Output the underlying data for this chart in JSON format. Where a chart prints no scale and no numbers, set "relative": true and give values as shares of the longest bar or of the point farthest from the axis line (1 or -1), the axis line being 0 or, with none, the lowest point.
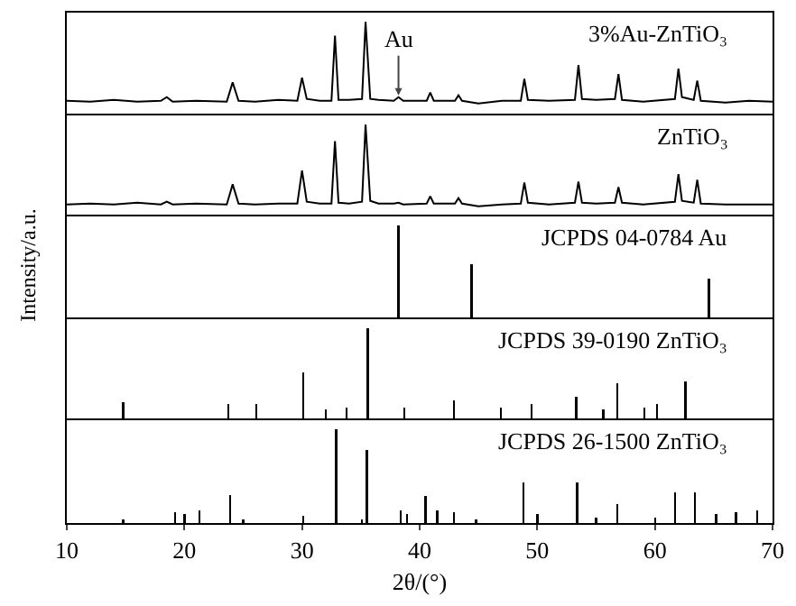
{
  "chart_data": [
    {
      "type": "line",
      "relative": true,
      "color": "#000000",
      "xlim": [
        10,
        70
      ],
      "xticks": [
        10,
        20,
        30,
        40,
        50,
        60,
        70
      ],
      "tick_labels": false,
      "annotations": [
        "3%Au-ZnTiO₃",
        {
          "text": "Au",
          "x": 38.2,
          "y": 0.2
        }
      ],
      "x": [
        10,
        12,
        14,
        16,
        18,
        18.5,
        19,
        21,
        23.6,
        24.1,
        24.6,
        26,
        28,
        29.6,
        30.0,
        30.4,
        31.5,
        32.5,
        32.8,
        33.1,
        34,
        35.1,
        35.4,
        35.8,
        36.5,
        37.8,
        38.2,
        38.6,
        40.6,
        40.9,
        41.2,
        43.0,
        43.3,
        43.6,
        45,
        47,
        48.6,
        48.9,
        49.2,
        51,
        53.2,
        53.5,
        53.8,
        55,
        56.6,
        56.9,
        57.2,
        59,
        61.7,
        62.0,
        62.3,
        63.3,
        63.6,
        63.9,
        66,
        68,
        70
      ],
      "values": [
        0.14,
        0.13,
        0.15,
        0.13,
        0.14,
        0.18,
        0.13,
        0.14,
        0.13,
        0.34,
        0.14,
        0.13,
        0.15,
        0.14,
        0.39,
        0.16,
        0.14,
        0.14,
        0.85,
        0.15,
        0.15,
        0.16,
        1,
        0.16,
        0.15,
        0.14,
        0.18,
        0.14,
        0.14,
        0.23,
        0.14,
        0.14,
        0.2,
        0.14,
        0.11,
        0.14,
        0.14,
        0.38,
        0.15,
        0.14,
        0.15,
        0.53,
        0.16,
        0.15,
        0.16,
        0.43,
        0.15,
        0.13,
        0.16,
        0.49,
        0.18,
        0.15,
        0.36,
        0.14,
        0.12,
        0.14,
        0.13
      ]
    },
    {
      "type": "line",
      "relative": true,
      "color": "#000000",
      "xlim": [
        10,
        70
      ],
      "xticks": [
        10,
        20,
        30,
        40,
        50,
        60,
        70
      ],
      "tick_labels": false,
      "annotations": [
        "ZnTiO₃"
      ],
      "x": [
        10,
        12,
        14,
        16,
        18,
        18.5,
        19,
        21,
        23.6,
        24.1,
        24.6,
        26,
        28,
        29.6,
        30.0,
        30.4,
        31.5,
        32.5,
        32.8,
        33.1,
        34,
        35.1,
        35.4,
        35.8,
        36.5,
        37.8,
        38.2,
        38.6,
        40.6,
        40.9,
        41.2,
        43.0,
        43.3,
        43.6,
        45,
        47,
        48.6,
        48.9,
        49.2,
        51,
        53.2,
        53.5,
        53.8,
        55,
        56.6,
        56.9,
        57.2,
        59,
        61.7,
        62.0,
        62.3,
        63.3,
        63.6,
        63.9,
        66,
        68,
        70
      ],
      "values": [
        0.13,
        0.14,
        0.13,
        0.15,
        0.13,
        0.16,
        0.13,
        0.14,
        0.13,
        0.35,
        0.14,
        0.13,
        0.14,
        0.14,
        0.5,
        0.16,
        0.14,
        0.14,
        0.82,
        0.15,
        0.14,
        0.16,
        1,
        0.17,
        0.14,
        0.14,
        0.15,
        0.13,
        0.14,
        0.22,
        0.14,
        0.14,
        0.2,
        0.14,
        0.11,
        0.13,
        0.14,
        0.37,
        0.15,
        0.13,
        0.15,
        0.38,
        0.15,
        0.14,
        0.15,
        0.32,
        0.15,
        0.13,
        0.16,
        0.46,
        0.17,
        0.15,
        0.4,
        0.14,
        0.13,
        0.13,
        0.13
      ]
    },
    {
      "type": "bar",
      "relative": true,
      "color": "#000000",
      "xlim": [
        10,
        70
      ],
      "xticks": [
        10,
        20,
        30,
        40,
        50,
        60,
        70
      ],
      "tick_labels": false,
      "ylabel": "Intensity/a.u.",
      "annotations": [
        "JCPDS 04-0784 Au"
      ],
      "x": [
        38.2,
        44.4,
        64.6
      ],
      "values": [
        1,
        0.58,
        0.42
      ]
    },
    {
      "type": "bar",
      "relative": true,
      "color": "#000000",
      "xlim": [
        10,
        70
      ],
      "xticks": [
        10,
        20,
        30,
        40,
        50,
        60,
        70
      ],
      "tick_labels": false,
      "annotations": [
        "JCPDS 39-0190 ZnTiO₃"
      ],
      "x": [
        14.8,
        23.75,
        26.1,
        30.1,
        32.0,
        33.8,
        35.6,
        38.7,
        42.9,
        46.9,
        49.5,
        53.3,
        55.6,
        56.8,
        59.1,
        60.2,
        62.6
      ],
      "values": [
        0.2,
        0.18,
        0.18,
        0.52,
        0.12,
        0.14,
        1,
        0.14,
        0.22,
        0.14,
        0.18,
        0.26,
        0.12,
        0.4,
        0.14,
        0.18,
        0.42
      ]
    },
    {
      "type": "bar",
      "relative": true,
      "color": "#000000",
      "xlim": [
        10,
        70
      ],
      "xticks": [
        10,
        20,
        30,
        40,
        50,
        60,
        70
      ],
      "tick_labels": "x",
      "xlabel": "2θ/(°)",
      "annotations": [
        "JCPDS 26-1500 ZnTiO₃"
      ],
      "x": [
        14.8,
        19.2,
        20.0,
        21.3,
        23.9,
        25.0,
        30.1,
        32.9,
        35.1,
        35.5,
        38.4,
        38.9,
        40.5,
        41.5,
        42.9,
        44.8,
        48.8,
        50.0,
        53.4,
        55.0,
        56.8,
        60.0,
        61.7,
        63.4,
        65.2,
        66.9,
        68.7
      ],
      "values": [
        0.04,
        0.12,
        0.1,
        0.14,
        0.3,
        0.04,
        0.08,
        1,
        0.04,
        0.78,
        0.14,
        0.1,
        0.29,
        0.14,
        0.12,
        0.04,
        0.43,
        0.1,
        0.43,
        0.06,
        0.2,
        0.06,
        0.33,
        0.33,
        0.1,
        0.12,
        0.14
      ]
    }
  ]
}
